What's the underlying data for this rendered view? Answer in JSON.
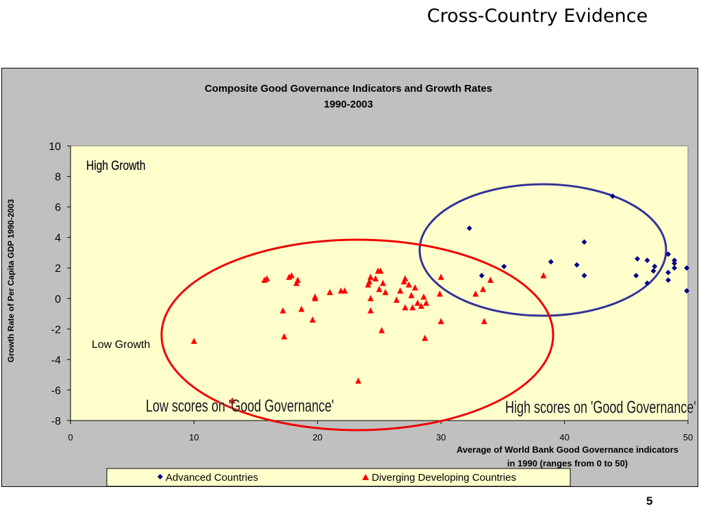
{
  "slide": {
    "title": "Cross-Country Evidence",
    "page_number": "5"
  },
  "chart_data": {
    "type": "scatter",
    "title": "Composite Good Governance Indicators and Growth Rates",
    "subtitle": "1990-2003",
    "xlabel_line1": "Average of World Bank Good Governance indicators",
    "xlabel_line2": "in 1990 (ranges from 0 to 50)",
    "ylabel": "Growth Rate of Per Capita GDP 1990-2003",
    "xlim": [
      0,
      50
    ],
    "ylim": [
      -8,
      10
    ],
    "x_ticks": [
      0,
      10,
      20,
      30,
      40,
      50
    ],
    "y_ticks": [
      -8,
      -6,
      -4,
      -2,
      0,
      2,
      4,
      6,
      8,
      10
    ],
    "grid": false,
    "legend": "bottom",
    "colors": {
      "advanced": "#00008b",
      "developing": "#ff0000",
      "plot_bg": "#ffffcc",
      "circle_high": "#333399",
      "circle_low": "#ee0000"
    },
    "annotations": {
      "high_growth": "High Growth",
      "low_growth": "Low Growth",
      "low_scores": "Low scores on 'Good Governance'",
      "high_scores": "High scores on 'Good Governance'"
    },
    "series": [
      {
        "name": "Advanced Countries",
        "marker": "diamond",
        "points": [
          [
            32.3,
            4.6
          ],
          [
            33.3,
            1.5
          ],
          [
            35.1,
            2.1
          ],
          [
            38.9,
            2.4
          ],
          [
            41.0,
            2.2
          ],
          [
            41.6,
            3.7
          ],
          [
            41.6,
            1.5
          ],
          [
            43.9,
            6.7
          ],
          [
            45.9,
            2.6
          ],
          [
            45.8,
            1.5
          ],
          [
            46.7,
            2.5
          ],
          [
            46.7,
            1.0
          ],
          [
            47.3,
            2.1
          ],
          [
            47.2,
            1.8
          ],
          [
            48.4,
            2.9
          ],
          [
            48.9,
            2.5
          ],
          [
            48.9,
            2.3
          ],
          [
            48.9,
            2.0
          ],
          [
            48.4,
            1.7
          ],
          [
            48.4,
            1.2
          ],
          [
            49.9,
            2.0
          ],
          [
            49.9,
            0.5
          ]
        ]
      },
      {
        "name": "Diverging Developing Countries",
        "marker": "triangle",
        "points": [
          [
            10.0,
            -2.8
          ],
          [
            13.1,
            -6.7
          ],
          [
            15.7,
            1.2
          ],
          [
            15.9,
            1.3
          ],
          [
            17.2,
            -0.8
          ],
          [
            17.3,
            -2.5
          ],
          [
            17.7,
            1.4
          ],
          [
            17.9,
            1.5
          ],
          [
            18.3,
            1.0
          ],
          [
            18.4,
            1.2
          ],
          [
            18.7,
            -0.7
          ],
          [
            19.6,
            -1.4
          ],
          [
            19.8,
            0.1
          ],
          [
            19.8,
            0.0
          ],
          [
            21.0,
            0.4
          ],
          [
            21.9,
            0.5
          ],
          [
            22.2,
            0.5
          ],
          [
            23.3,
            -5.4
          ],
          [
            24.1,
            0.9
          ],
          [
            24.2,
            1.1
          ],
          [
            24.3,
            1.4
          ],
          [
            24.3,
            0.0
          ],
          [
            24.3,
            -0.8
          ],
          [
            24.7,
            1.3
          ],
          [
            24.9,
            1.8
          ],
          [
            25.0,
            0.6
          ],
          [
            25.1,
            1.8
          ],
          [
            25.3,
            1.0
          ],
          [
            25.2,
            -2.1
          ],
          [
            25.5,
            0.4
          ],
          [
            26.4,
            -0.1
          ],
          [
            26.7,
            0.5
          ],
          [
            27.0,
            1.1
          ],
          [
            27.1,
            -0.6
          ],
          [
            27.1,
            1.3
          ],
          [
            27.4,
            0.9
          ],
          [
            27.6,
            0.2
          ],
          [
            27.7,
            -0.6
          ],
          [
            27.9,
            0.7
          ],
          [
            28.1,
            -0.3
          ],
          [
            28.4,
            -0.5
          ],
          [
            28.6,
            0.1
          ],
          [
            28.7,
            -2.6
          ],
          [
            28.8,
            -0.3
          ],
          [
            29.9,
            0.3
          ],
          [
            30.0,
            1.4
          ],
          [
            30.0,
            -1.5
          ],
          [
            32.8,
            0.3
          ],
          [
            33.4,
            0.6
          ],
          [
            33.5,
            -1.5
          ],
          [
            34.0,
            1.2
          ],
          [
            38.3,
            1.5
          ]
        ]
      }
    ]
  }
}
